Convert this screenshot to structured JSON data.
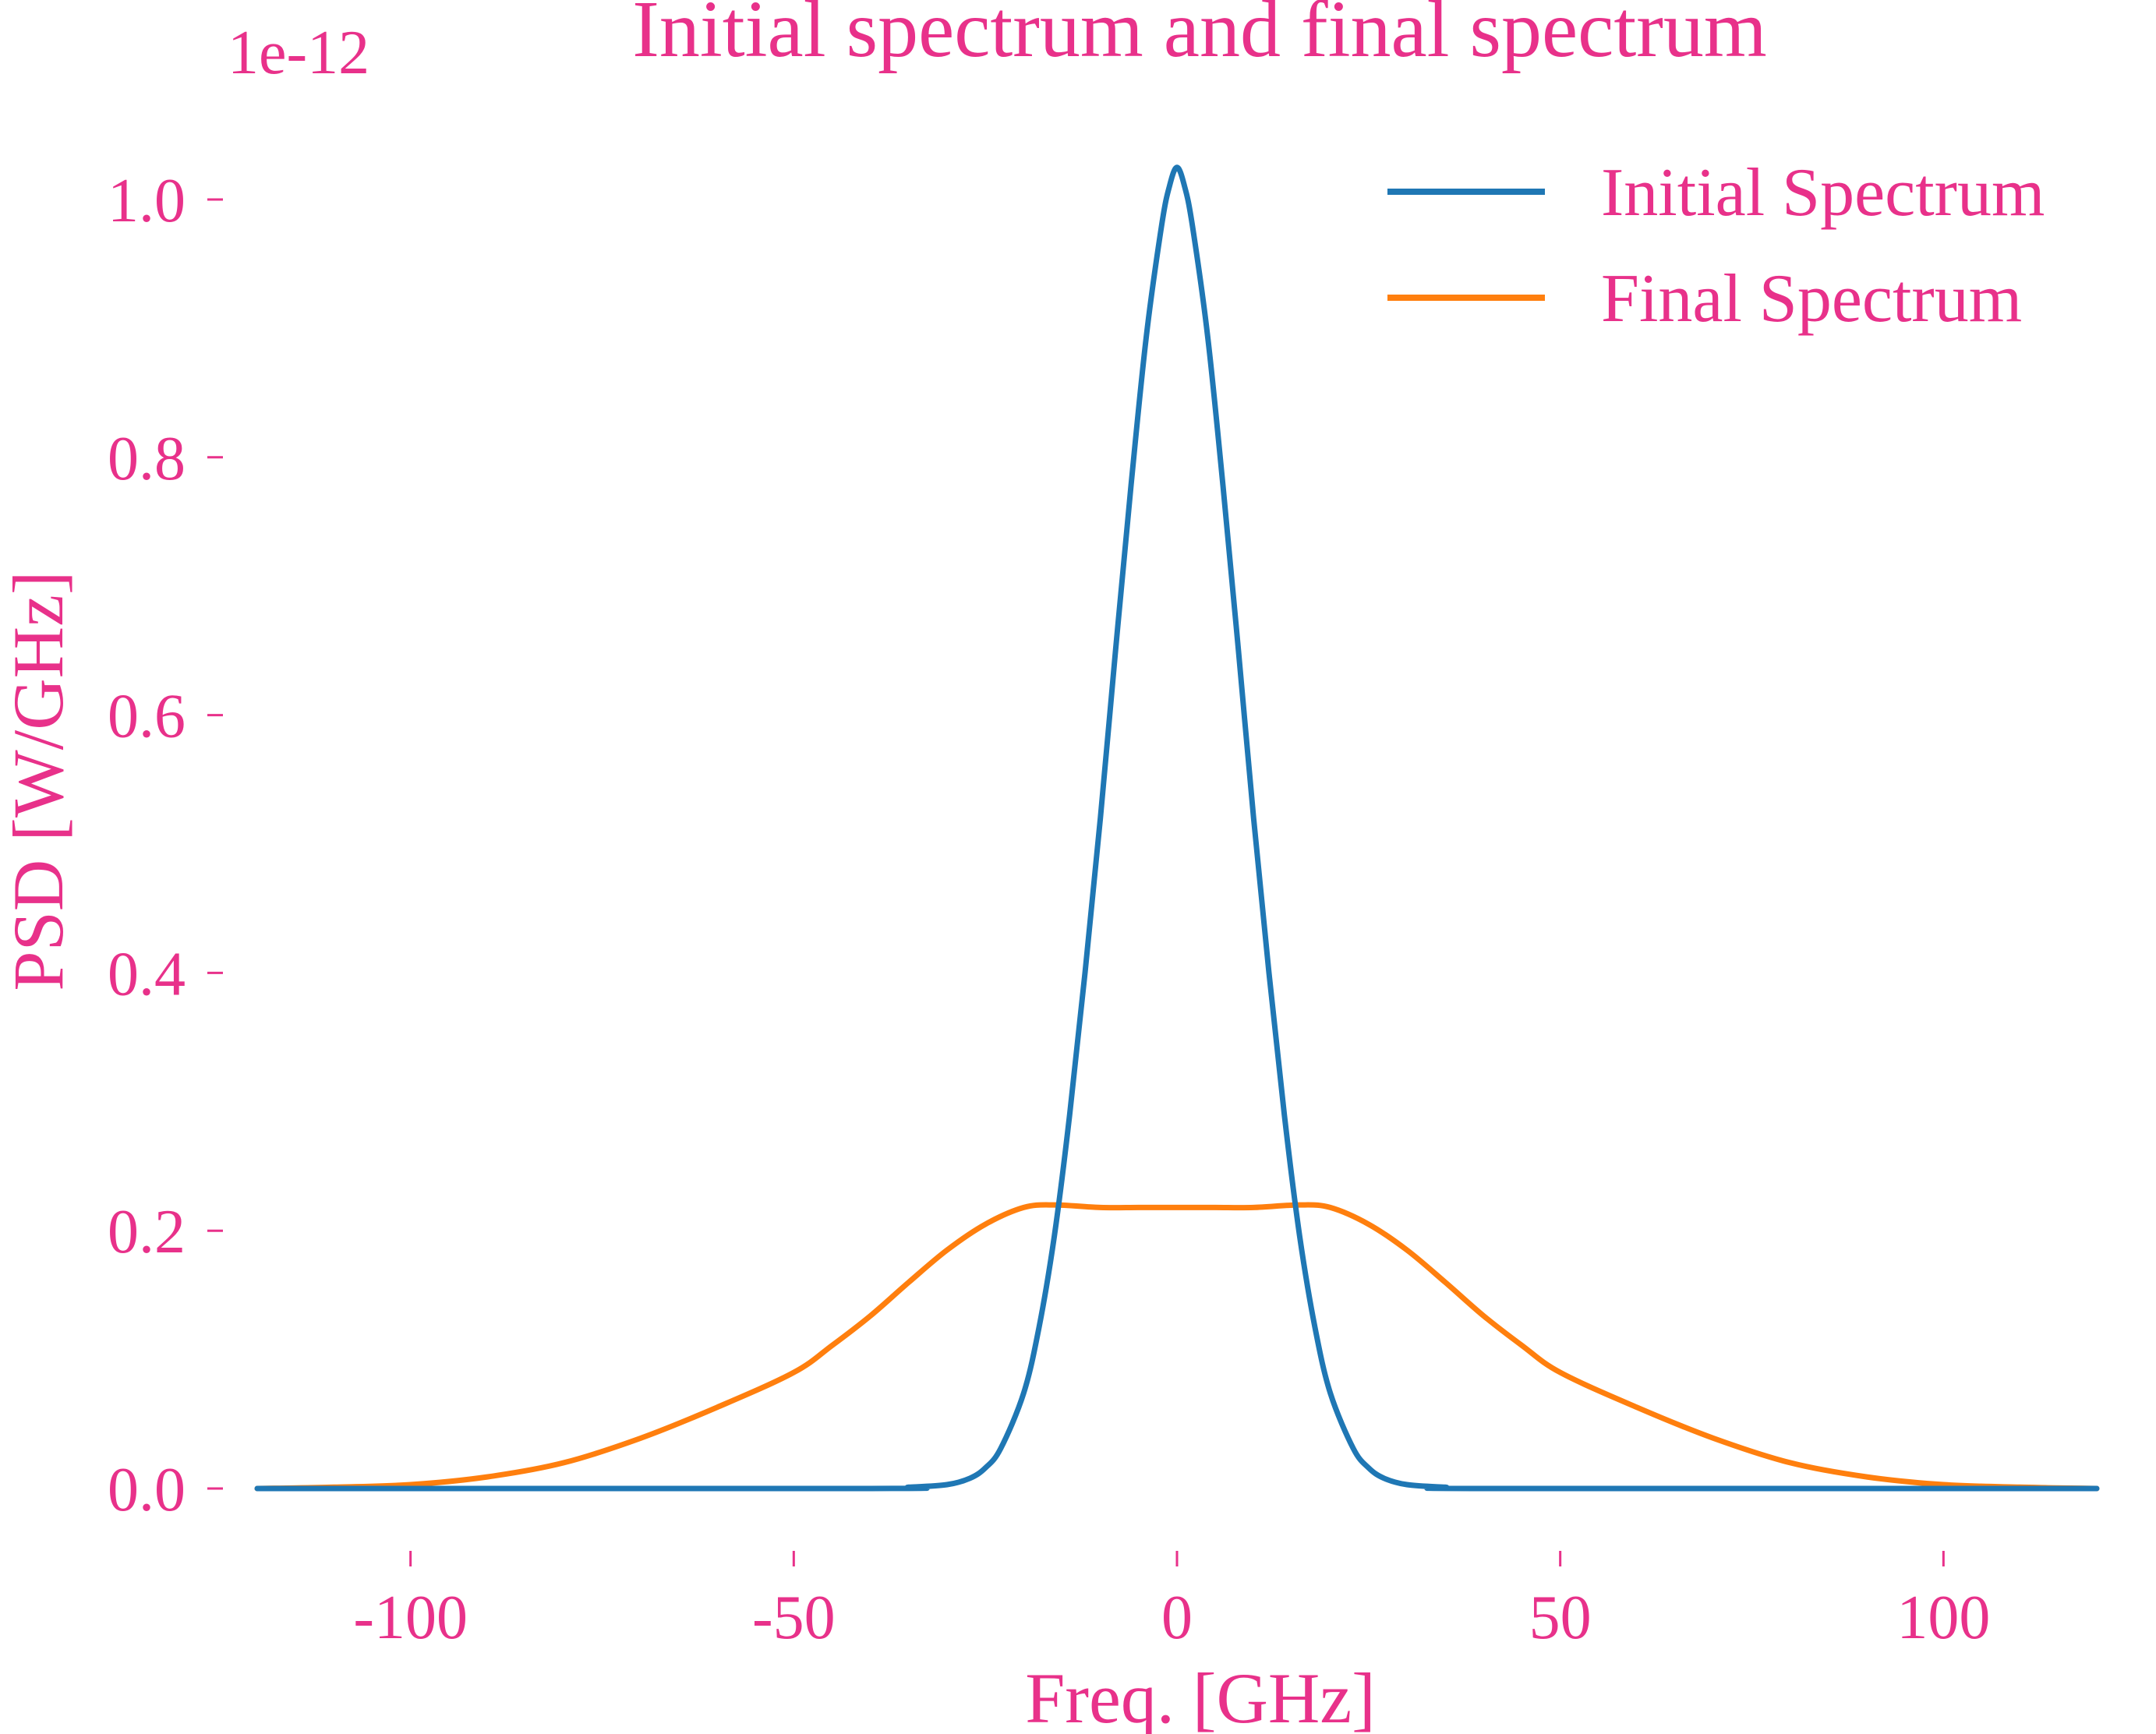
{
  "colors": {
    "text": "#E8318A",
    "initial": "#1F77B4",
    "final": "#FF7F0E",
    "background": "#FFFFFF"
  },
  "chart_data": {
    "type": "line",
    "title": "Initial spectrum and final spectrum",
    "xlabel": "Freq. [GHz]",
    "ylabel": "PSD [W/GHz]",
    "y_offset_label": "1e-12",
    "xlim": [
      -120,
      120
    ],
    "ylim": [
      -0.05,
      1.05
    ],
    "x_ticks": [
      -100,
      -50,
      0,
      50,
      100
    ],
    "x_tick_labels": [
      "-100",
      "-50",
      "0",
      "50",
      "100"
    ],
    "y_ticks": [
      0.0,
      0.2,
      0.4,
      0.6,
      0.8,
      1.0
    ],
    "y_tick_labels": [
      "0.0",
      "0.2",
      "0.4",
      "0.6",
      "0.8",
      "1.0"
    ],
    "grid": false,
    "legend_position": "top-right",
    "series": [
      {
        "name": "Initial Spectrum",
        "color": "#1F77B4",
        "x": [
          -120,
          -40,
          -35,
          -30,
          -27,
          -25,
          -23,
          -20,
          -18,
          -16,
          -14,
          -12,
          -10,
          -8,
          -6,
          -4,
          -2,
          -1,
          0,
          1,
          2,
          4,
          6,
          8,
          10,
          12,
          14,
          16,
          18,
          20,
          23,
          25,
          27,
          30,
          35,
          40,
          120
        ],
        "values": [
          0.0,
          0.0,
          0.001,
          0.003,
          0.008,
          0.016,
          0.031,
          0.074,
          0.125,
          0.196,
          0.29,
          0.4,
          0.52,
          0.651,
          0.778,
          0.894,
          0.98,
          1.01,
          1.025,
          1.01,
          0.98,
          0.894,
          0.778,
          0.651,
          0.52,
          0.4,
          0.29,
          0.196,
          0.125,
          0.074,
          0.031,
          0.016,
          0.008,
          0.003,
          0.001,
          0.0,
          0.0
        ]
      },
      {
        "name": "Final Spectrum",
        "color": "#FF7F0E",
        "x": [
          -120,
          -110,
          -100,
          -90,
          -80,
          -70,
          -60,
          -50,
          -45,
          -40,
          -35,
          -30,
          -25,
          -20,
          -16,
          -10,
          -5,
          0,
          5,
          10,
          16,
          20,
          25,
          30,
          35,
          40,
          45,
          50,
          60,
          70,
          80,
          90,
          100,
          110,
          120
        ],
        "values": [
          0.0,
          0.001,
          0.003,
          0.009,
          0.02,
          0.039,
          0.063,
          0.09,
          0.111,
          0.134,
          0.16,
          0.185,
          0.205,
          0.218,
          0.22,
          0.218,
          0.218,
          0.218,
          0.218,
          0.218,
          0.22,
          0.218,
          0.205,
          0.185,
          0.16,
          0.134,
          0.111,
          0.09,
          0.063,
          0.039,
          0.02,
          0.009,
          0.003,
          0.001,
          0.0
        ]
      }
    ]
  }
}
